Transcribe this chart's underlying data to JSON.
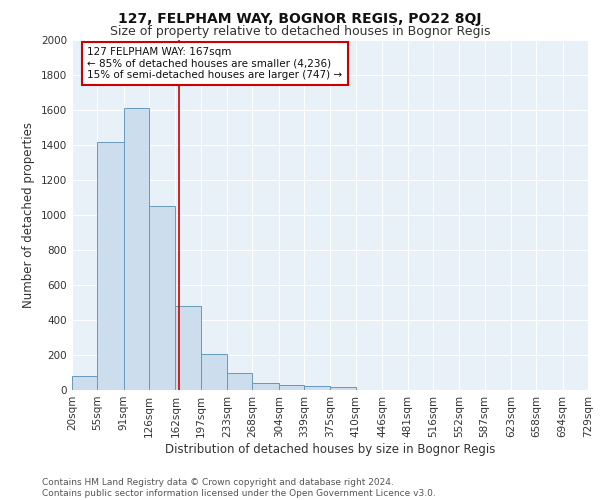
{
  "title": "127, FELPHAM WAY, BOGNOR REGIS, PO22 8QJ",
  "subtitle": "Size of property relative to detached houses in Bognor Regis",
  "xlabel": "Distribution of detached houses by size in Bognor Regis",
  "ylabel": "Number of detached properties",
  "footnote1": "Contains HM Land Registry data © Crown copyright and database right 2024.",
  "footnote2": "Contains public sector information licensed under the Open Government Licence v3.0.",
  "annotation_line1": "127 FELPHAM WAY: 167sqm",
  "annotation_line2": "← 85% of detached houses are smaller (4,236)",
  "annotation_line3": "15% of semi-detached houses are larger (747) →",
  "bin_edges": [
    20,
    55,
    91,
    126,
    162,
    197,
    233,
    268,
    304,
    339,
    375,
    410,
    446,
    481,
    516,
    552,
    587,
    623,
    658,
    694,
    729
  ],
  "bin_counts": [
    80,
    1420,
    1610,
    1050,
    480,
    205,
    100,
    42,
    28,
    22,
    18,
    0,
    0,
    0,
    0,
    0,
    0,
    0,
    0,
    0
  ],
  "bar_color": "#ccdded",
  "bar_edge_color": "#6699bb",
  "vline_color": "#cc0000",
  "vline_x": 167,
  "background_color": "#e8f0f8",
  "grid_color": "#ffffff",
  "annotation_box_edge": "#cc0000",
  "ylim": [
    0,
    2000
  ],
  "yticks": [
    0,
    200,
    400,
    600,
    800,
    1000,
    1200,
    1400,
    1600,
    1800,
    2000
  ],
  "title_fontsize": 10,
  "subtitle_fontsize": 9,
  "axis_label_fontsize": 8.5,
  "tick_fontsize": 7.5,
  "annotation_fontsize": 7.5,
  "footnote_fontsize": 6.5
}
